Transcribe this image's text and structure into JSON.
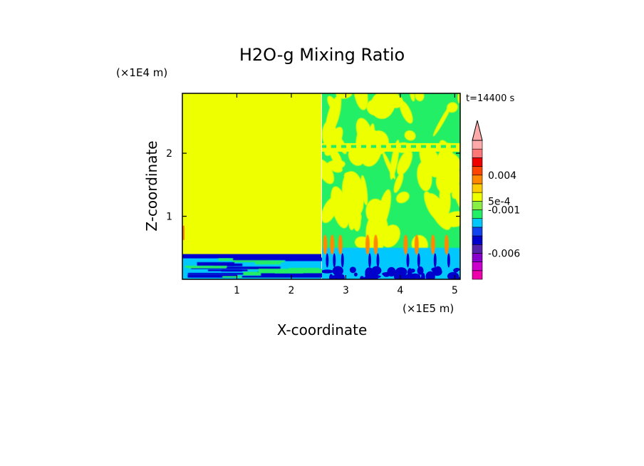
{
  "chart_data": {
    "type": "heatmap",
    "title": "H2O-g Mixing Ratio",
    "xlabel": "X-coordinate",
    "ylabel": "Z-coordinate",
    "x_unit": "(×1E5 m)",
    "y_unit": "(×1E4 m)",
    "time_label": "t=14400 s",
    "xlim": [
      0,
      5.1
    ],
    "ylim": [
      0,
      2.95
    ],
    "x_ticks": [
      1,
      2,
      3,
      4,
      5
    ],
    "x_tick_labels": [
      "1",
      "2",
      "3",
      "4",
      "5"
    ],
    "y_ticks": [
      1,
      2
    ],
    "y_tick_labels": [
      "1",
      "2"
    ],
    "colorbar": {
      "levels": 16,
      "tick_labels": [
        {
          "text": "0.004",
          "level": 12.0
        },
        {
          "text": "5e-4",
          "level": 9.0
        },
        {
          "text": "-0.001",
          "level": 8.0
        },
        {
          "text": "-0.006",
          "level": 3.0
        }
      ],
      "colors": [
        "#ee00aa",
        "#cc00cc",
        "#8800cc",
        "#5522aa",
        "#0000cc",
        "#1144ee",
        "#00c8ff",
        "#22ee66",
        "#88ee44",
        "#eeff00",
        "#ffcc00",
        "#ff8800",
        "#ff4400",
        "#ee0000",
        "#ff7777",
        "#ffaaaa"
      ],
      "triangle_color": "#ffaaaa"
    },
    "regions": [
      {
        "name": "upper-left",
        "x": [
          0,
          2.55
        ],
        "z": [
          0.4,
          2.95
        ],
        "color": "#eeff00"
      },
      {
        "name": "lower-left-boundary-layer",
        "x": [
          0,
          2.55
        ],
        "z": [
          0,
          0.4
        ],
        "colors": [
          "#0000cc",
          "#00c8ff",
          "#22ee66"
        ]
      },
      {
        "name": "right-turbulent",
        "x": [
          2.55,
          5.1
        ],
        "z": [
          0,
          2.95
        ],
        "colors": [
          "#22ee66",
          "#eeff00",
          "#00c8ff",
          "#0000cc",
          "#ff8800"
        ]
      }
    ]
  }
}
